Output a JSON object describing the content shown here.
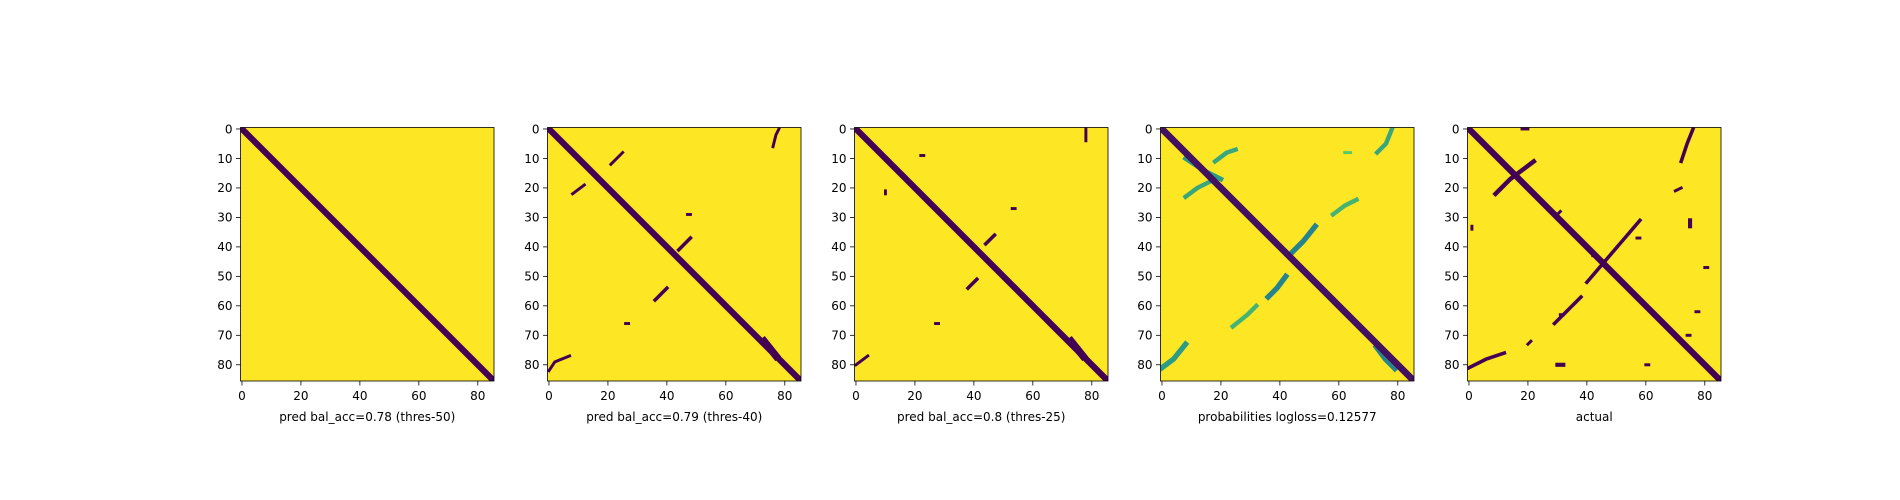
{
  "chart_data": [
    {
      "type": "heatmap",
      "title": "pred bal_acc=0.78 (thres-50)",
      "xlim": [
        0,
        85
      ],
      "ylim": [
        85,
        0
      ],
      "xticks": [
        0,
        20,
        40,
        60,
        80
      ],
      "yticks": [
        0,
        10,
        20,
        30,
        40,
        50,
        60,
        70,
        80
      ],
      "colormap": "viridis",
      "value_range": [
        0,
        1
      ],
      "grid": false,
      "main_diagonal": {
        "value": 0,
        "half_width": 1.5
      },
      "background_value": 1,
      "features": []
    },
    {
      "type": "heatmap",
      "title": "pred bal_acc=0.79 (thres-40)",
      "xlim": [
        0,
        85
      ],
      "ylim": [
        85,
        0
      ],
      "xticks": [
        0,
        20,
        40,
        60,
        80
      ],
      "yticks": [
        0,
        10,
        20,
        30,
        40,
        50,
        60,
        70,
        80
      ],
      "colormap": "viridis",
      "value_range": [
        0,
        1
      ],
      "grid": false,
      "main_diagonal": {
        "value": 0,
        "half_width": 1.5
      },
      "background_value": 1,
      "features": [
        {
          "points": [
            [
              78,
              0
            ],
            [
              77,
              2
            ],
            [
              76,
              6
            ]
          ],
          "value": 0,
          "width": 1
        },
        {
          "points": [
            [
              21,
              12
            ],
            [
              25,
              8
            ]
          ],
          "value": 0,
          "width": 1
        },
        {
          "points": [
            [
              8,
              22
            ],
            [
              12,
              19
            ]
          ],
          "value": 0,
          "width": 1
        },
        {
          "points": [
            [
              44,
              41
            ],
            [
              48,
              37
            ]
          ],
          "value": 0,
          "width": 1.2
        },
        {
          "points": [
            [
              47,
              29
            ],
            [
              48,
              29
            ]
          ],
          "value": 0,
          "width": 1
        },
        {
          "points": [
            [
              36,
              58
            ],
            [
              40,
              54
            ]
          ],
          "value": 0,
          "width": 1.2
        },
        {
          "points": [
            [
              26,
              66
            ],
            [
              27,
              66
            ]
          ],
          "value": 0,
          "width": 1
        },
        {
          "points": [
            [
              73,
              72
            ],
            [
              77,
              77
            ]
          ],
          "value": 0,
          "width": 2.5
        },
        {
          "points": [
            [
              0,
              82
            ],
            [
              2,
              79
            ],
            [
              7,
              77
            ]
          ],
          "value": 0,
          "width": 1
        }
      ]
    },
    {
      "type": "heatmap",
      "title": "pred bal_acc=0.8 (thres-25)",
      "xlim": [
        0,
        85
      ],
      "ylim": [
        85,
        0
      ],
      "xticks": [
        0,
        20,
        40,
        60,
        80
      ],
      "yticks": [
        0,
        10,
        20,
        30,
        40,
        50,
        60,
        70,
        80
      ],
      "colormap": "viridis",
      "value_range": [
        0,
        1
      ],
      "grid": false,
      "main_diagonal": {
        "value": 0,
        "half_width": 1.5
      },
      "background_value": 1,
      "features": [
        {
          "points": [
            [
              78,
              0
            ],
            [
              78,
              4
            ]
          ],
          "value": 0,
          "width": 1
        },
        {
          "points": [
            [
              22,
              9
            ],
            [
              23,
              9
            ]
          ],
          "value": 0,
          "width": 1
        },
        {
          "points": [
            [
              10,
              21
            ],
            [
              10,
              22
            ]
          ],
          "value": 0,
          "width": 1
        },
        {
          "points": [
            [
              53,
              27
            ],
            [
              54,
              27
            ]
          ],
          "value": 0,
          "width": 1
        },
        {
          "points": [
            [
              44,
              39
            ],
            [
              47,
              36
            ]
          ],
          "value": 0,
          "width": 1.2
        },
        {
          "points": [
            [
              38,
              54
            ],
            [
              41,
              51
            ]
          ],
          "value": 0,
          "width": 1.2
        },
        {
          "points": [
            [
              27,
              66
            ],
            [
              28,
              66
            ]
          ],
          "value": 0,
          "width": 1
        },
        {
          "points": [
            [
              73,
              72
            ],
            [
              77,
              77
            ]
          ],
          "value": 0,
          "width": 2.5
        },
        {
          "points": [
            [
              0,
              80
            ],
            [
              4,
              77
            ]
          ],
          "value": 0,
          "width": 1
        }
      ]
    },
    {
      "type": "heatmap",
      "title": "probabilities logloss=0.12577",
      "xlim": [
        0,
        85
      ],
      "ylim": [
        85,
        0
      ],
      "xticks": [
        0,
        20,
        40,
        60,
        80
      ],
      "yticks": [
        0,
        10,
        20,
        30,
        40,
        50,
        60,
        70,
        80
      ],
      "colormap": "viridis",
      "value_range": [
        0,
        1
      ],
      "grid": false,
      "main_diagonal": {
        "value": 0.05,
        "half_width": 1.6
      },
      "background_value": 1,
      "features": [
        {
          "points": [
            [
              8,
              10
            ],
            [
              14,
              14
            ],
            [
              20,
              17
            ]
          ],
          "value": 0.55,
          "width": 1.6
        },
        {
          "points": [
            [
              18,
              11
            ],
            [
              22,
              8
            ],
            [
              25,
              7
            ]
          ],
          "value": 0.6,
          "width": 1.5
        },
        {
          "points": [
            [
              8,
              23
            ],
            [
              12,
              20
            ],
            [
              16,
              18
            ]
          ],
          "value": 0.6,
          "width": 1.5
        },
        {
          "points": [
            [
              78,
              0
            ],
            [
              76,
              5
            ],
            [
              73,
              8
            ]
          ],
          "value": 0.6,
          "width": 1.5
        },
        {
          "points": [
            [
              44,
              42
            ],
            [
              48,
              38
            ],
            [
              52,
              33
            ]
          ],
          "value": 0.45,
          "width": 1.8
        },
        {
          "points": [
            [
              58,
              29
            ],
            [
              62,
              26
            ],
            [
              66,
              24
            ]
          ],
          "value": 0.65,
          "width": 1.5
        },
        {
          "points": [
            [
              36,
              57
            ],
            [
              39,
              54
            ],
            [
              42,
              50
            ]
          ],
          "value": 0.45,
          "width": 1.8
        },
        {
          "points": [
            [
              24,
              67
            ],
            [
              29,
              63
            ],
            [
              32,
              60
            ]
          ],
          "value": 0.65,
          "width": 1.5
        },
        {
          "points": [
            [
              0,
              81
            ],
            [
              4,
              78
            ],
            [
              8,
              73
            ]
          ],
          "value": 0.55,
          "width": 1.8
        },
        {
          "points": [
            [
              73,
              74
            ],
            [
              76,
              78
            ],
            [
              79,
              81
            ]
          ],
          "value": 0.45,
          "width": 2.2
        },
        {
          "points": [
            [
              62,
              8
            ],
            [
              64,
              8
            ]
          ],
          "value": 0.75,
          "width": 1
        }
      ]
    },
    {
      "type": "heatmap",
      "title": "actual",
      "xlim": [
        0,
        85
      ],
      "ylim": [
        85,
        0
      ],
      "xticks": [
        0,
        20,
        40,
        60,
        80
      ],
      "yticks": [
        0,
        10,
        20,
        30,
        40,
        50,
        60,
        70,
        80
      ],
      "colormap": "viridis",
      "value_range": [
        0,
        1
      ],
      "grid": false,
      "main_diagonal": {
        "value": 0,
        "half_width": 1.5
      },
      "background_value": 1,
      "features": [
        {
          "points": [
            [
              9,
              22
            ],
            [
              14,
              17
            ],
            [
              22,
              11
            ]
          ],
          "value": 0,
          "width": 1.5
        },
        {
          "points": [
            [
              40,
              52
            ],
            [
              46,
              45
            ]
          ],
          "value": 0,
          "width": 1.2
        },
        {
          "points": [
            [
              46,
              45
            ],
            [
              58,
              31
            ]
          ],
          "value": 0,
          "width": 1.2
        },
        {
          "points": [
            [
              29,
              66
            ],
            [
              33,
              62
            ],
            [
              38,
              57
            ]
          ],
          "value": 0,
          "width": 1.2
        },
        {
          "points": [
            [
              0,
              81
            ],
            [
              6,
              78
            ],
            [
              12,
              76
            ]
          ],
          "value": 0,
          "width": 1.2
        },
        {
          "points": [
            [
              76,
              0
            ],
            [
              74,
              5
            ],
            [
              72,
              11
            ]
          ],
          "value": 0,
          "width": 1.2
        },
        {
          "points": [
            [
              70,
              21
            ],
            [
              72,
              20
            ]
          ],
          "value": 0,
          "width": 1
        },
        {
          "points": [
            [
              75,
              31
            ],
            [
              75,
              33
            ]
          ],
          "value": 0,
          "width": 1.4
        },
        {
          "points": [
            [
              30,
              29
            ],
            [
              31,
              28
            ]
          ],
          "value": 0,
          "width": 1
        },
        {
          "points": [
            [
              1,
              33
            ],
            [
              1,
              34
            ]
          ],
          "value": 0,
          "width": 1
        },
        {
          "points": [
            [
              30,
              80
            ],
            [
              32,
              80
            ]
          ],
          "value": 0,
          "width": 1.4
        },
        {
          "points": [
            [
              20,
              73
            ],
            [
              21,
              72
            ]
          ],
          "value": 0,
          "width": 1
        },
        {
          "points": [
            [
              60,
              80
            ],
            [
              61,
              80
            ]
          ],
          "value": 0,
          "width": 1
        },
        {
          "points": [
            [
              77,
              62
            ],
            [
              78,
              62
            ]
          ],
          "value": 0,
          "width": 1
        },
        {
          "points": [
            [
              74,
              70
            ],
            [
              75,
              70
            ]
          ],
          "value": 0,
          "width": 1
        },
        {
          "points": [
            [
              18,
              0
            ],
            [
              20,
              0
            ]
          ],
          "value": 0,
          "width": 1
        },
        {
          "points": [
            [
              80,
              47
            ],
            [
              81,
              47
            ]
          ],
          "value": 0,
          "width": 1
        },
        {
          "points": [
            [
              31,
              63
            ],
            [
              32,
              63
            ]
          ],
          "value": 0,
          "width": 1
        },
        {
          "points": [
            [
              42,
              43
            ],
            [
              43,
              43
            ]
          ],
          "value": 0,
          "width": 1
        },
        {
          "points": [
            [
              57,
              37
            ],
            [
              58,
              37
            ]
          ],
          "value": 0,
          "width": 1
        }
      ]
    }
  ]
}
